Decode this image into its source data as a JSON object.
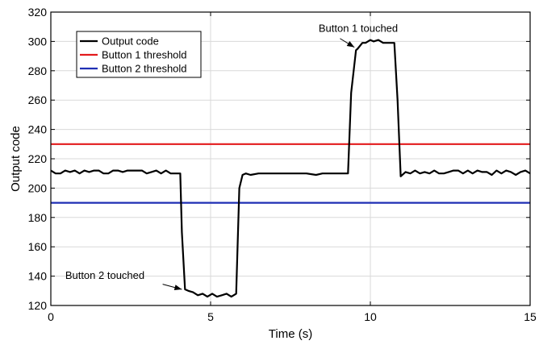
{
  "chart_data": {
    "type": "line",
    "title": "",
    "xlabel": "Time (s)",
    "ylabel": "Output code",
    "xlim": [
      0,
      15
    ],
    "ylim": [
      120,
      320
    ],
    "xticks": [
      0,
      5,
      10,
      15
    ],
    "xtick_labels": [
      "0",
      "5",
      "10",
      "15"
    ],
    "yticks": [
      120,
      140,
      160,
      180,
      200,
      220,
      240,
      260,
      280,
      300,
      320
    ],
    "ytick_labels": [
      "120",
      "140",
      "160",
      "180",
      "200",
      "220",
      "240",
      "260",
      "280",
      "300",
      "320"
    ],
    "grid": true,
    "legend_position": "top-left",
    "series": [
      {
        "name": "Output code",
        "color": "#000000",
        "x": [
          0,
          0.15,
          0.3,
          0.45,
          0.6,
          0.75,
          0.9,
          1.05,
          1.2,
          1.35,
          1.5,
          1.65,
          1.8,
          1.95,
          2.1,
          2.25,
          2.4,
          2.55,
          2.7,
          2.85,
          3.0,
          3.15,
          3.3,
          3.45,
          3.6,
          3.75,
          3.9,
          4.05,
          4.1,
          4.2,
          4.3,
          4.45,
          4.6,
          4.75,
          4.9,
          5.05,
          5.2,
          5.35,
          5.5,
          5.65,
          5.8,
          5.85,
          5.9,
          6.0,
          6.1,
          6.25,
          6.5,
          7.0,
          7.5,
          8.0,
          8.3,
          8.5,
          9.0,
          9.3,
          9.4,
          9.55,
          9.6,
          9.75,
          9.85,
          10.0,
          10.1,
          10.25,
          10.4,
          10.55,
          10.6,
          10.75,
          10.85,
          10.95,
          11.1,
          11.25,
          11.4,
          11.55,
          11.7,
          11.85,
          12.0,
          12.15,
          12.3,
          12.45,
          12.6,
          12.75,
          12.9,
          13.05,
          13.2,
          13.35,
          13.5,
          13.65,
          13.8,
          13.95,
          14.1,
          14.25,
          14.4,
          14.55,
          14.7,
          14.85,
          15.0
        ],
        "values": [
          212,
          210,
          210,
          212,
          211,
          212,
          210,
          212,
          211,
          212,
          212,
          210,
          210,
          212,
          212,
          211,
          212,
          212,
          212,
          212,
          210,
          211,
          212,
          210,
          212,
          210,
          210,
          210,
          170,
          131,
          130,
          129,
          127,
          128,
          126,
          128,
          126,
          127,
          128,
          126,
          128,
          165,
          200,
          209,
          210,
          209,
          210,
          210,
          210,
          210,
          209,
          210,
          210,
          210,
          265,
          294,
          295,
          299,
          299,
          301,
          300,
          301,
          299,
          299,
          299,
          299,
          260,
          208,
          211,
          210,
          212,
          210,
          211,
          210,
          212,
          210,
          210,
          211,
          212,
          212,
          210,
          212,
          210,
          212,
          211,
          211,
          209,
          212,
          210,
          212,
          211,
          209,
          211,
          212,
          210
        ]
      },
      {
        "name": "Button 1 threshold",
        "color": "#e31a1c",
        "x": [
          0,
          15
        ],
        "values": [
          230,
          230
        ]
      },
      {
        "name": "Button 2 threshold",
        "color": "#1f2fb4",
        "x": [
          0,
          15
        ],
        "values": [
          190,
          190
        ]
      }
    ],
    "annotations": [
      {
        "text": "Button 1 touched",
        "x": 8.38,
        "y": 306.5,
        "arrow_from": [
          9.05,
          302
        ],
        "arrow_to": [
          9.5,
          296
        ]
      },
      {
        "text": "Button 2 touched",
        "x": 0.45,
        "y": 138,
        "arrow_from": [
          3.5,
          134.5
        ],
        "arrow_to": [
          4.1,
          131
        ]
      }
    ]
  }
}
